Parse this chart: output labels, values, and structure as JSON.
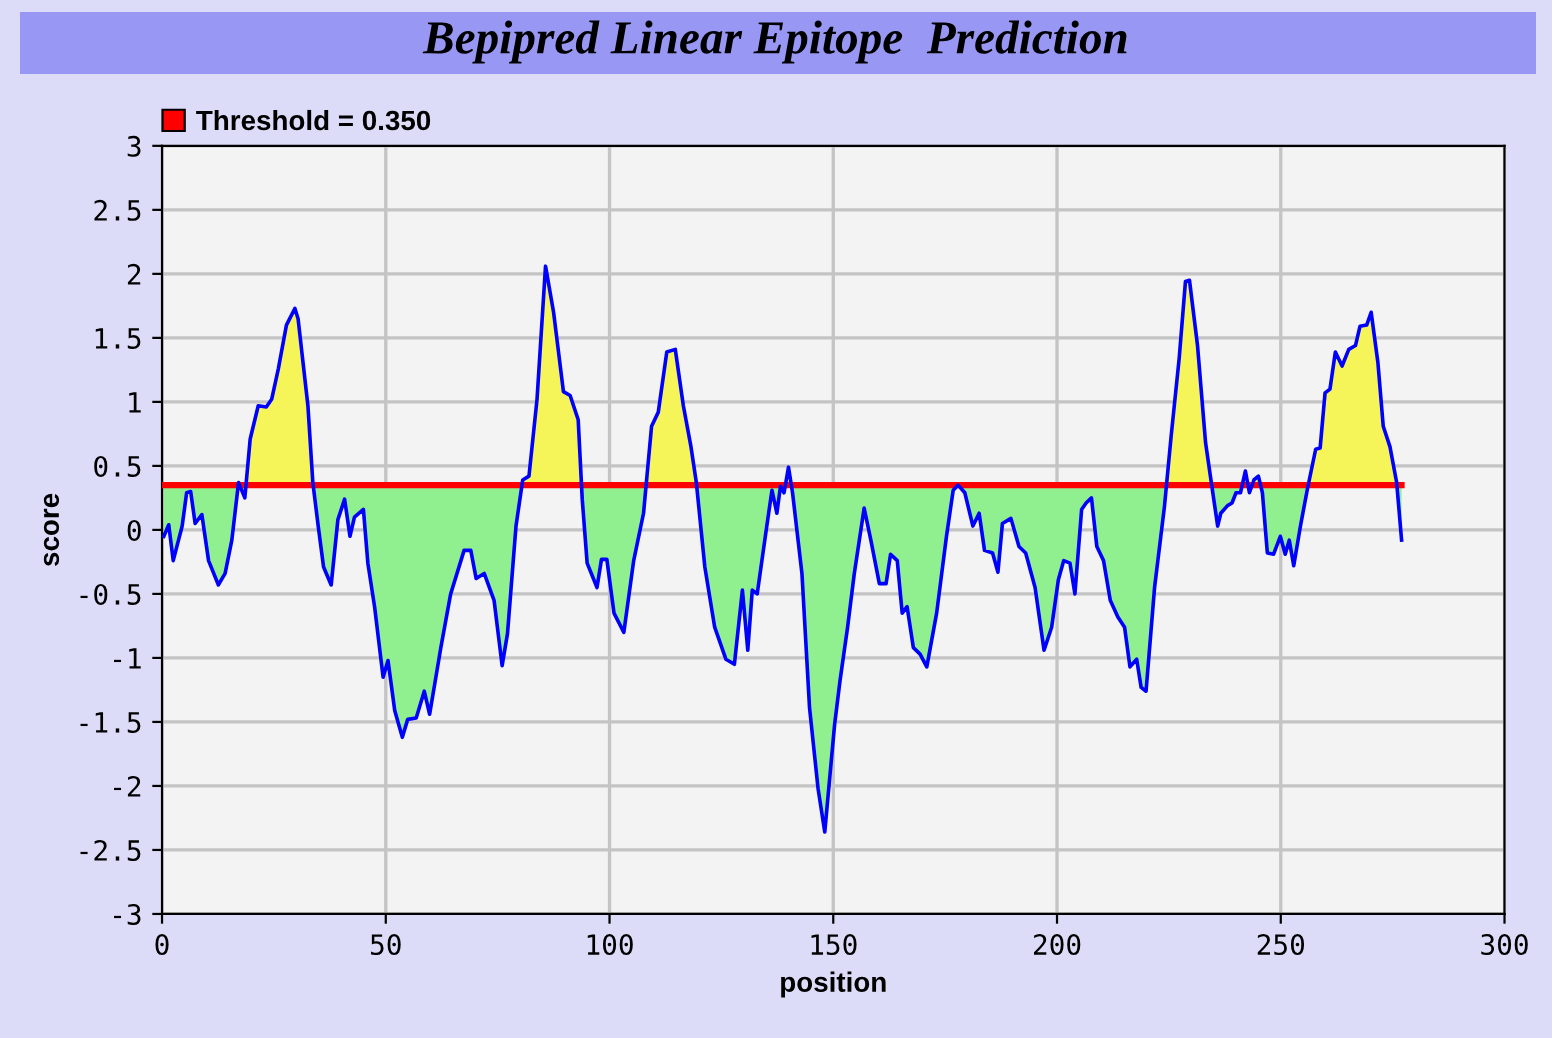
{
  "chart_data": {
    "type": "line",
    "title": "Bepipred Linear Epitope  Prediction",
    "xlabel": "position",
    "ylabel": "score",
    "xlim": [
      0,
      300
    ],
    "xticks": [
      0,
      50,
      100,
      150,
      200,
      250,
      300
    ],
    "ylim": [
      -3,
      3
    ],
    "yticks": [
      -3,
      -2.5,
      -2,
      -1.5,
      -1,
      -0.5,
      0,
      0.5,
      1,
      1.5,
      2,
      2.5,
      3
    ],
    "grid": true,
    "legend": "top left",
    "ref_lines": [
      {
        "axis": "y",
        "value": 0.35,
        "label": "Threshold = 0.350",
        "color": "#ff0000"
      }
    ],
    "series": [
      {
        "color": "#0000ff",
        "colors": [
          "#90f090",
          "#90f090",
          "#90f090",
          "#90f090",
          "#90f090",
          "#90f090",
          "#90f090",
          "#90f090",
          "#90f090",
          "#90f090",
          "#90f090",
          "#90f090",
          "#f5f55a",
          "#90f090",
          "#f5f55a",
          "#f5f55a",
          "#f5f55a",
          "#f5f55a",
          "#f5f55a",
          "#f5f55a",
          "#f5f55a",
          "#f5f55a",
          "#f5f55a",
          "#f5f55a",
          "#90f090",
          "#90f090",
          "#90f090",
          "#90f090",
          "#90f090",
          "#90f090",
          "#90f090",
          "#90f090",
          "#90f090",
          "#90f090",
          "#90f090",
          "#90f090",
          "#90f090",
          "#90f090",
          "#90f090",
          "#90f090",
          "#90f090",
          "#90f090",
          "#90f090",
          "#90f090",
          "#90f090",
          "#90f090",
          "#90f090",
          "#90f090",
          "#90f090",
          "#90f090",
          "#90f090",
          "#90f090",
          "#f5f55a",
          "#f5f55a",
          "#f5f55a",
          "#f5f55a",
          "#f5f55a",
          "#f5f55a",
          "#f5f55a",
          "#f5f55a",
          "#90f090",
          "#90f090",
          "#90f090",
          "#90f090",
          "#90f090",
          "#90f090",
          "#90f090",
          "#90f090",
          "#90f090",
          "#f5f55a",
          "#f5f55a",
          "#f5f55a",
          "#f5f55a",
          "#f5f55a",
          "#f5f55a",
          "#f5f55a",
          "#90f090",
          "#90f090",
          "#90f090",
          "#90f090",
          "#90f090",
          "#90f090",
          "#90f090",
          "#90f090",
          "#90f090",
          "#90f090",
          "#90f090",
          "#90f090",
          "#90f090",
          "#f5f55a",
          "#90f090",
          "#90f090",
          "#90f090",
          "#90f090",
          "#90f090",
          "#90f090",
          "#90f090",
          "#90f090",
          "#90f090",
          "#90f090",
          "#90f090",
          "#90f090",
          "#90f090",
          "#90f090",
          "#90f090",
          "#90f090",
          "#90f090",
          "#90f090",
          "#90f090",
          "#90f090",
          "#90f090",
          "#90f090",
          "#90f090",
          "#90f090",
          "#90f090",
          "#90f090",
          "#90f090",
          "#90f090",
          "#90f090",
          "#90f090",
          "#90f090",
          "#90f090",
          "#90f090",
          "#90f090",
          "#90f090",
          "#90f090",
          "#90f090",
          "#90f090",
          "#90f090",
          "#90f090",
          "#90f090",
          "#90f090",
          "#90f090",
          "#90f090",
          "#90f090",
          "#90f090",
          "#90f090",
          "#90f090",
          "#90f090",
          "#90f090",
          "#90f090",
          "#90f090",
          "#90f090",
          "#90f090",
          "#90f090",
          "#f5f55a",
          "#f5f55a",
          "#f5f55a",
          "#f5f55a",
          "#f5f55a",
          "#f5f55a",
          "#f5f55a",
          "#90f090",
          "#90f090",
          "#90f090",
          "#90f090",
          "#90f090",
          "#90f090",
          "#f5f55a",
          "#90f090",
          "#f5f55a",
          "#f5f55a",
          "#90f090",
          "#90f090",
          "#90f090",
          "#90f090",
          "#90f090",
          "#90f090",
          "#90f090",
          "#90f090",
          "#90f090",
          "#f5f55a",
          "#f5f55a",
          "#f5f55a",
          "#f5f55a",
          "#f5f55a",
          "#f5f55a",
          "#f5f55a",
          "#f5f55a",
          "#f5f55a",
          "#f5f55a",
          "#f5f55a",
          "#f5f55a",
          "#f5f55a",
          "#f5f55a",
          "#f5f55a",
          "#90f090"
        ],
        "x": [
          0.4,
          1.5,
          2.5,
          4.5,
          5.5,
          6.4,
          7.4,
          8.9,
          10.4,
          12.6,
          14.1,
          15.6,
          17.1,
          18.5,
          19.7,
          21.5,
          23.3,
          24.5,
          26.0,
          27.8,
          29.7,
          30.4,
          32.6,
          33.7,
          34.9,
          36.1,
          37.8,
          39.3,
          40.8,
          42.0,
          43.0,
          45.0,
          46.0,
          47.5,
          49.4,
          50.5,
          52.0,
          53.7,
          54.9,
          56.8,
          58.6,
          59.8,
          62.3,
          64.5,
          67.5,
          69.0,
          70.2,
          72.0,
          74.2,
          76.0,
          77.2,
          79.1,
          80.6,
          82.0,
          83.8,
          85.7,
          87.5,
          89.7,
          91.2,
          93.0,
          93.9,
          95.0,
          97.2,
          98.2,
          99.4,
          101.0,
          103.2,
          105.4,
          107.6,
          109.4,
          110.9,
          112.8,
          114.7,
          116.5,
          118.2,
          119.4,
          121.3,
          123.5,
          126.0,
          127.9,
          129.7,
          130.9,
          131.9,
          133.0,
          134.9,
          136.3,
          137.4,
          138.2,
          139.0,
          140.0,
          140.9,
          143.0,
          144.7,
          146.6,
          148.1,
          150.3,
          151.5,
          153.2,
          154.7,
          156.9,
          158.4,
          160.3,
          161.8,
          162.8,
          164.3,
          165.4,
          166.5,
          167.9,
          169.4,
          170.9,
          173.1,
          175.3,
          176.8,
          177.9,
          179.4,
          181.2,
          182.6,
          183.8,
          185.6,
          186.8,
          187.8,
          189.7,
          191.5,
          193.0,
          195.1,
          197.1,
          198.8,
          200.3,
          201.5,
          202.9,
          204.0,
          205.5,
          206.5,
          207.7,
          208.9,
          210.4,
          211.9,
          213.6,
          215.1,
          216.3,
          217.8,
          218.8,
          219.9,
          221.8,
          224.0,
          225.5,
          227.3,
          228.7,
          229.6,
          231.4,
          233.2,
          234.4,
          235.9,
          236.6,
          238.1,
          239.1,
          240.0,
          241.0,
          242.1,
          243.0,
          244.0,
          245.0,
          245.9,
          247.0,
          248.4,
          249.9,
          251.0,
          251.9,
          252.9,
          254.4,
          255.9,
          257.8,
          258.8,
          259.9,
          261.0,
          262.2,
          263.7,
          265.2,
          266.7,
          267.7,
          269.2,
          270.2,
          271.7,
          272.9,
          274.4,
          275.9,
          277.0
        ],
        "values": [
          -0.05,
          0.04,
          -0.24,
          0.03,
          0.29,
          0.3,
          0.05,
          0.12,
          -0.24,
          -0.43,
          -0.34,
          -0.08,
          0.37,
          0.25,
          0.71,
          0.97,
          0.96,
          1.02,
          1.26,
          1.6,
          1.73,
          1.65,
          0.97,
          0.37,
          0.03,
          -0.29,
          -0.43,
          0.08,
          0.24,
          -0.05,
          0.1,
          0.16,
          -0.26,
          -0.6,
          -1.15,
          -1.02,
          -1.41,
          -1.62,
          -1.48,
          -1.47,
          -1.26,
          -1.44,
          -0.92,
          -0.5,
          -0.16,
          -0.16,
          -0.38,
          -0.34,
          -0.55,
          -1.06,
          -0.81,
          0.03,
          0.39,
          0.42,
          1.02,
          2.06,
          1.7,
          1.08,
          1.05,
          0.86,
          0.24,
          -0.26,
          -0.45,
          -0.23,
          -0.23,
          -0.65,
          -0.8,
          -0.24,
          0.13,
          0.81,
          0.92,
          1.39,
          1.41,
          0.97,
          0.65,
          0.37,
          -0.29,
          -0.76,
          -1.01,
          -1.05,
          -0.47,
          -0.94,
          -0.47,
          -0.5,
          -0.03,
          0.31,
          0.13,
          0.34,
          0.29,
          0.49,
          0.29,
          -0.34,
          -1.39,
          -2.02,
          -2.36,
          -1.52,
          -1.18,
          -0.76,
          -0.34,
          0.17,
          -0.08,
          -0.42,
          -0.42,
          -0.19,
          -0.24,
          -0.65,
          -0.6,
          -0.92,
          -0.97,
          -1.07,
          -0.65,
          -0.05,
          0.31,
          0.35,
          0.29,
          0.03,
          0.13,
          -0.16,
          -0.18,
          -0.33,
          0.05,
          0.09,
          -0.13,
          -0.18,
          -0.45,
          -0.94,
          -0.76,
          -0.39,
          -0.24,
          -0.26,
          -0.5,
          0.16,
          0.21,
          0.25,
          -0.13,
          -0.24,
          -0.55,
          -0.68,
          -0.76,
          -1.07,
          -1.01,
          -1.23,
          -1.26,
          -0.45,
          0.18,
          0.73,
          1.34,
          1.94,
          1.95,
          1.44,
          0.68,
          0.39,
          0.03,
          0.13,
          0.19,
          0.21,
          0.29,
          0.29,
          0.46,
          0.29,
          0.39,
          0.42,
          0.29,
          -0.18,
          -0.19,
          -0.05,
          -0.19,
          -0.08,
          -0.28,
          0.03,
          0.31,
          0.63,
          0.64,
          1.07,
          1.1,
          1.39,
          1.28,
          1.41,
          1.44,
          1.59,
          1.6,
          1.7,
          1.31,
          0.81,
          0.65,
          0.37,
          -0.08
        ]
      }
    ]
  }
}
